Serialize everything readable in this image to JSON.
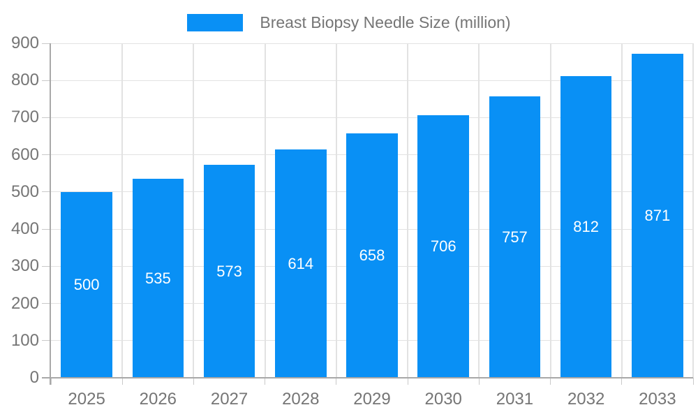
{
  "chart_data": {
    "type": "bar",
    "title": "Breast Biopsy Needle Size (million)",
    "series_name": "Breast Biopsy Needle Size (million)",
    "categories": [
      "2025",
      "2026",
      "2027",
      "2028",
      "2029",
      "2030",
      "2031",
      "2032",
      "2033"
    ],
    "values": [
      500,
      535,
      573,
      614,
      658,
      706,
      757,
      812,
      871
    ],
    "xlabel": "",
    "ylabel": "",
    "ylim": [
      0,
      900
    ],
    "yticks": [
      0,
      100,
      200,
      300,
      400,
      500,
      600,
      700,
      800,
      900
    ],
    "grid": true,
    "legend_position": "top-center",
    "value_labels": "centered-inside-bars"
  },
  "colors": {
    "bar": "#0990f5",
    "bar_label": "#ffffff",
    "axis_text": "#757575",
    "title_text": "#757575",
    "gridline": "#e2e2e2",
    "axis_line": "#a8a8a8",
    "tick": "#c9c9c9",
    "background": "#ffffff"
  }
}
